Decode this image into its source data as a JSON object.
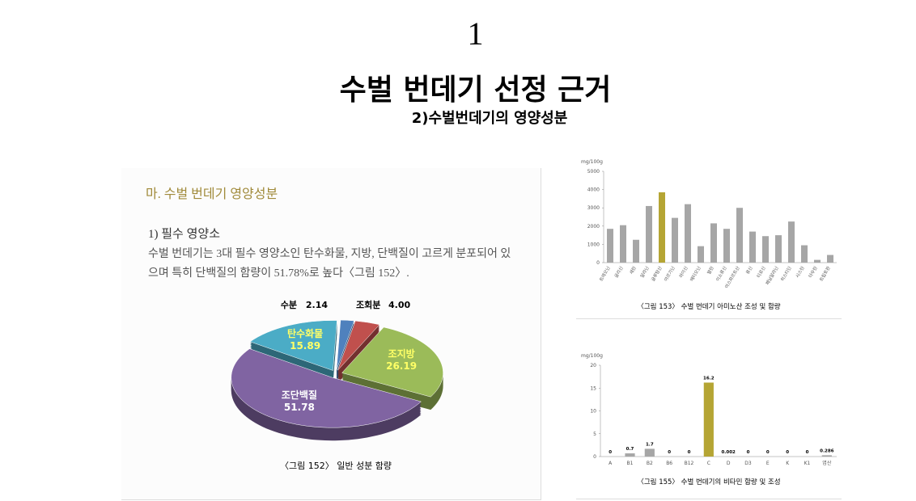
{
  "header": {
    "number": "1",
    "title": "수벌 번데기 선정 근거",
    "subtitle": "2)수벌번데기의 영양성분"
  },
  "document": {
    "section": "마. 수벌 번데기 영양성분",
    "subsection": "1) 필수 영양소",
    "paragraph": "수벌 번데기는 3대 필수 영양소인 탄수화물, 지방, 단백질이 고르게 분포되어 있으며 특히 단백질의 함량이 51.78%로 높다〈그림 152〉."
  },
  "chart_data": [
    {
      "type": "pie",
      "caption": "〈그림 152〉 일반 성분 함량",
      "categories": [
        "수분",
        "조회분",
        "조지방",
        "조단백질",
        "탄수화물"
      ],
      "values": [
        2.14,
        4.0,
        26.19,
        51.78,
        15.89
      ],
      "value_labels": [
        "2.14",
        "4.00",
        "26.19",
        "51.78",
        "15.89"
      ],
      "colors": [
        "#4f81bd",
        "#c0504d",
        "#9bbb59",
        "#8064a2",
        "#4bacc6"
      ]
    },
    {
      "type": "bar",
      "caption": "〈그림 153〉 수벌 번데기 아미노산 조성 및 함량",
      "y_label": "mg/100g",
      "categories": [
        "트레오닌",
        "글리신",
        "세린",
        "알라닌",
        "글루탐산",
        "아르기닌",
        "라이신",
        "메티오닌",
        "발린",
        "이소류신",
        "아스파르트산",
        "류신",
        "티로신",
        "페닐알라닌",
        "히스티딘",
        "시스틴",
        "타우린",
        "트립토판"
      ],
      "values": [
        1850,
        2050,
        1250,
        3100,
        3850,
        2450,
        3200,
        900,
        2150,
        1850,
        3000,
        1700,
        1450,
        1500,
        2250,
        950,
        150,
        420
      ],
      "colors": [
        "#a6a6a6",
        "#a6a6a6",
        "#a6a6a6",
        "#a6a6a6",
        "#b5a534",
        "#a6a6a6",
        "#a6a6a6",
        "#a6a6a6",
        "#a6a6a6",
        "#a6a6a6",
        "#a6a6a6",
        "#a6a6a6",
        "#a6a6a6",
        "#a6a6a6",
        "#a6a6a6",
        "#a6a6a6",
        "#a6a6a6",
        "#a6a6a6"
      ],
      "ylim": [
        0,
        5000
      ],
      "yticks": [
        0,
        1000,
        2000,
        3000,
        4000,
        5000
      ]
    },
    {
      "type": "bar",
      "caption": "〈그림 155〉 수벌 번데기의 비타민 함량 및 조성",
      "y_label": "mg/100g",
      "categories": [
        "A",
        "B1",
        "B2",
        "B6",
        "B12",
        "C",
        "D",
        "D3",
        "E",
        "K",
        "K1",
        "엽산"
      ],
      "values": [
        0,
        0.7,
        1.7,
        0,
        0,
        16.2,
        0.002,
        0,
        0,
        0,
        0,
        0.286
      ],
      "colors": [
        "#a6a6a6",
        "#a6a6a6",
        "#a6a6a6",
        "#a6a6a6",
        "#a6a6a6",
        "#b5a534",
        "#a6a6a6",
        "#a6a6a6",
        "#a6a6a6",
        "#a6a6a6",
        "#a6a6a6",
        "#a6a6a6"
      ],
      "ylim": [
        0,
        20
      ],
      "yticks": [
        0,
        5,
        10,
        15,
        20
      ],
      "show_value_labels": true
    }
  ]
}
